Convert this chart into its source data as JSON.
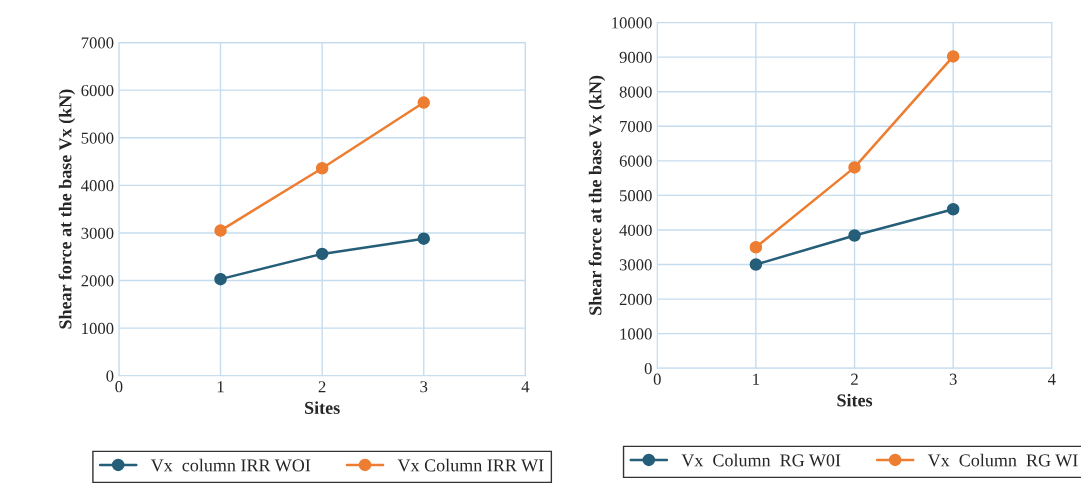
{
  "chart_data": [
    {
      "type": "line",
      "xlabel": "Sites",
      "ylabel": "Shear force at the base Vx (kN)",
      "x": [
        1,
        2,
        3
      ],
      "xlim": [
        0,
        4
      ],
      "xticks": [
        0,
        1,
        2,
        3,
        4
      ],
      "ylim": [
        0,
        7000
      ],
      "yticks": [
        0,
        1000,
        2000,
        3000,
        4000,
        5000,
        6000,
        7000
      ],
      "grid": true,
      "legend": "bottom",
      "marker": "circle",
      "series": [
        {
          "name": "Vx  column IRR WOI",
          "color": "#255e79",
          "values": [
            2030,
            2560,
            2880
          ]
        },
        {
          "name": "Vx Column IRR WI",
          "color": "#ed7d31",
          "values": [
            3050,
            4360,
            5740
          ]
        }
      ]
    },
    {
      "type": "line",
      "xlabel": "Sites",
      "ylabel": "Shear force at the base Vx (kN)",
      "x": [
        1,
        2,
        3
      ],
      "xlim": [
        0,
        4
      ],
      "xticks": [
        0,
        1,
        2,
        3,
        4
      ],
      "ylim": [
        0,
        10000
      ],
      "yticks": [
        0,
        1000,
        2000,
        3000,
        4000,
        5000,
        6000,
        7000,
        8000,
        9000,
        10000
      ],
      "grid": true,
      "legend": "bottom",
      "marker": "circle",
      "series": [
        {
          "name": "Vx  Column  RG W0I",
          "color": "#255e79",
          "values": [
            3000,
            3840,
            4600
          ]
        },
        {
          "name": "Vx  Column  RG WI",
          "color": "#ed7d31",
          "values": [
            3500,
            5810,
            9020
          ]
        }
      ]
    }
  ]
}
